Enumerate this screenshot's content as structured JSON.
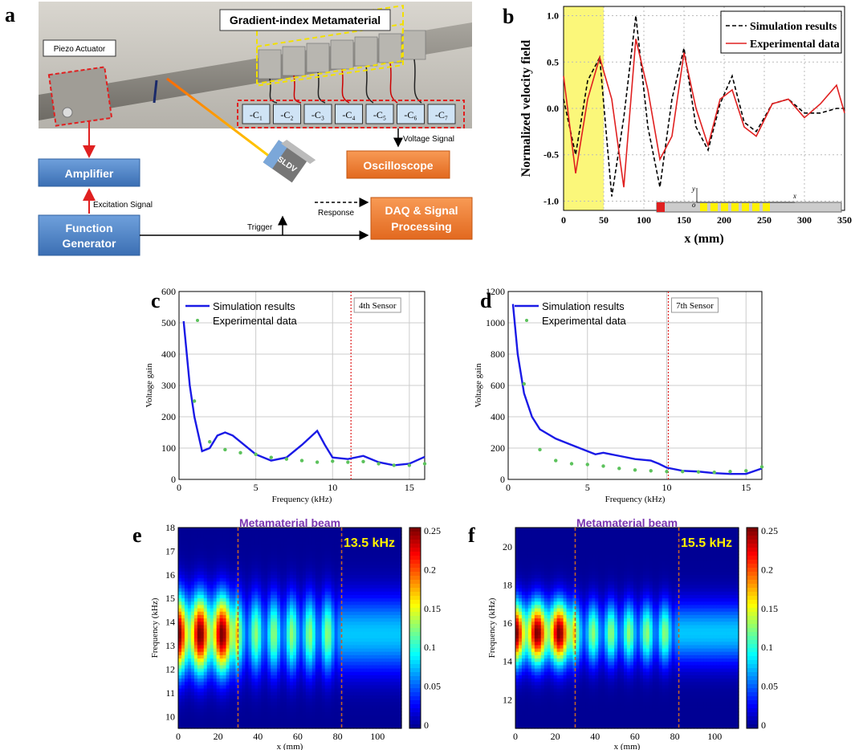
{
  "panel_labels": {
    "a": "a",
    "b": "b",
    "c": "c",
    "d": "d",
    "e": "e",
    "f": "f"
  },
  "panel_a": {
    "photo_title": "Gradient-index Metamaterial",
    "actuator_label": "Piezo Actuator",
    "capacitors": [
      "-C₁",
      "-C₂",
      "-C₃",
      "-C₄",
      "-C₅",
      "-C₆",
      "-C₇"
    ],
    "amplifier": "Amplifier",
    "excitation": "Excitation Signal",
    "function_generator": "Function Generator",
    "sldv": "SLDV",
    "response": "Response",
    "trigger": "Trigger",
    "voltage_signal": "Voltage Signal",
    "oscilloscope": "Oscilloscope",
    "daq": "DAQ & Signal Processing",
    "colors": {
      "blue_box": "#4a7fc1",
      "orange_box": "#ee7d31",
      "red": "#e02020"
    }
  },
  "panel_b": {
    "ylabel": "Normalized velocity field",
    "xlabel": "x (mm)",
    "legend": [
      "Simulation results",
      "Experimental data"
    ],
    "xticks": [
      "0",
      "50",
      "100",
      "150",
      "200",
      "250",
      "300",
      "350"
    ],
    "yticks": [
      "1.0",
      "0.5",
      "0.0",
      "-0.5",
      "-1.0"
    ],
    "inset_x": "x",
    "inset_y": "y",
    "inset_o": "o"
  },
  "panel_c": {
    "legend": [
      "Simulation results",
      "Experimental data"
    ],
    "sensor": "4th Sensor",
    "xlabel": "Frequency (kHz)",
    "ylabel": "Voltage gain",
    "xticks": [
      "0",
      "5",
      "10",
      "15"
    ],
    "yticks": [
      "0",
      "100",
      "200",
      "300",
      "400",
      "500",
      "600"
    ]
  },
  "panel_d": {
    "legend": [
      "Simulation results",
      "Experimental data"
    ],
    "sensor": "7th Sensor",
    "xlabel": "Frequency (kHz)",
    "ylabel": "Voltage gain",
    "xticks": [
      "0",
      "5",
      "10",
      "15"
    ],
    "yticks": [
      "0",
      "200",
      "400",
      "600",
      "800",
      "1000",
      "1200"
    ]
  },
  "panel_e": {
    "title": "Metamaterial beam",
    "freq": "13.5 kHz",
    "ylabel": "Frequency (kHz)",
    "xlabel": "x (mm)",
    "yticks": [
      "18",
      "17",
      "16",
      "15",
      "14",
      "13",
      "12",
      "11",
      "10"
    ],
    "xticks": [
      "0",
      "20",
      "40",
      "60",
      "80",
      "100"
    ],
    "cbar": [
      "0.25",
      "0.2",
      "0.15",
      "0.1",
      "0.05",
      "0"
    ]
  },
  "panel_f": {
    "title": "Metamaterial beam",
    "freq": "15.5 kHz",
    "ylabel": "Frequency (kHz)",
    "xlabel": "x (mm)",
    "yticks": [
      "20",
      "18",
      "16",
      "14",
      "12"
    ],
    "xticks": [
      "0",
      "20",
      "40",
      "60",
      "80",
      "100"
    ],
    "cbar": [
      "0.25",
      "0.2",
      "0.15",
      "0.1",
      "0.05",
      "0"
    ]
  },
  "chart_data": [
    {
      "type": "line",
      "xlabel": "x (mm)",
      "ylabel": "Normalized velocity field",
      "xlim": [
        0,
        350
      ],
      "ylim": [
        -1.1,
        1.1
      ],
      "series": [
        {
          "name": "Simulation results",
          "x": [
            0,
            15,
            30,
            45,
            60,
            75,
            90,
            105,
            120,
            135,
            150,
            165,
            180,
            195,
            210,
            225,
            240,
            260,
            280,
            300,
            320,
            340,
            350
          ],
          "values": [
            0.1,
            -0.5,
            0.3,
            0.55,
            -0.95,
            -0.1,
            1.0,
            -0.2,
            -0.85,
            0.1,
            0.65,
            -0.2,
            -0.45,
            0.05,
            0.35,
            -0.15,
            -0.25,
            0.05,
            0.1,
            -0.05,
            -0.05,
            0.0,
            0.0
          ]
        },
        {
          "name": "Experimental data",
          "x": [
            0,
            15,
            30,
            45,
            60,
            75,
            90,
            105,
            120,
            135,
            150,
            165,
            180,
            195,
            210,
            225,
            240,
            260,
            280,
            300,
            320,
            340,
            350
          ],
          "values": [
            0.35,
            -0.7,
            0.1,
            0.55,
            0.1,
            -0.85,
            0.75,
            0.2,
            -0.55,
            -0.3,
            0.6,
            0.0,
            -0.4,
            0.1,
            0.2,
            -0.2,
            -0.3,
            0.05,
            0.1,
            -0.1,
            0.05,
            0.25,
            -0.05
          ]
        }
      ],
      "highlight_range": [
        0,
        50
      ]
    },
    {
      "type": "line",
      "xlabel": "Frequency (kHz)",
      "ylabel": "Voltage gain",
      "xlim": [
        0,
        16
      ],
      "ylim": [
        0,
        600
      ],
      "vline": 11.2,
      "series": [
        {
          "name": "Simulation results",
          "x": [
            0.3,
            0.7,
            1,
            1.5,
            2,
            2.5,
            3,
            3.5,
            4,
            5,
            6,
            7,
            8,
            9,
            9.5,
            10,
            11,
            12,
            13,
            14,
            15,
            16
          ],
          "values": [
            505,
            300,
            200,
            90,
            100,
            140,
            150,
            140,
            120,
            80,
            60,
            70,
            110,
            155,
            110,
            70,
            65,
            75,
            55,
            45,
            50,
            72
          ]
        },
        {
          "name": "Experimental data",
          "x": [
            1,
            2,
            3,
            4,
            5,
            6,
            7,
            8,
            9,
            10,
            11,
            12,
            13,
            14,
            15,
            16
          ],
          "values": [
            250,
            120,
            95,
            85,
            80,
            70,
            65,
            60,
            55,
            58,
            55,
            57,
            50,
            45,
            45,
            50
          ]
        }
      ]
    },
    {
      "type": "line",
      "xlabel": "Frequency (kHz)",
      "ylabel": "Voltage gain",
      "xlim": [
        0,
        16
      ],
      "ylim": [
        0,
        1200
      ],
      "vline": 10.1,
      "series": [
        {
          "name": "Simulation results",
          "x": [
            0.3,
            0.6,
            1,
            1.5,
            2,
            3,
            4,
            5,
            5.5,
            6,
            7,
            8,
            9,
            9.5,
            10,
            11,
            12,
            13,
            14,
            15,
            16
          ],
          "values": [
            1120,
            800,
            550,
            400,
            320,
            260,
            220,
            180,
            160,
            170,
            150,
            130,
            120,
            100,
            75,
            55,
            50,
            40,
            35,
            35,
            70
          ]
        },
        {
          "name": "Experimental data",
          "x": [
            1,
            2,
            3,
            4,
            5,
            6,
            7,
            8,
            9,
            10,
            11,
            12,
            13,
            14,
            15,
            16
          ],
          "values": [
            610,
            190,
            120,
            100,
            95,
            85,
            70,
            60,
            55,
            50,
            50,
            48,
            45,
            50,
            55,
            80
          ]
        }
      ]
    }
  ]
}
